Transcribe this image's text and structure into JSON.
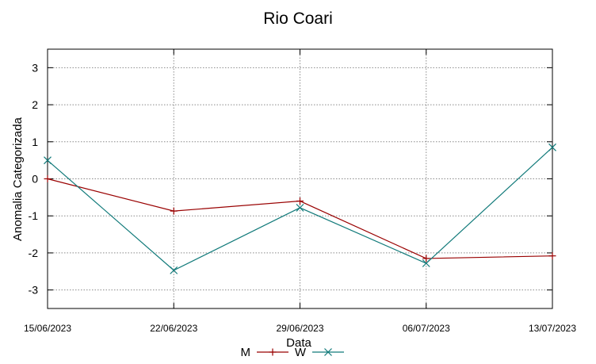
{
  "chart_data": {
    "type": "line",
    "title": "Rio Coari",
    "xlabel": "Data",
    "ylabel": "Anomalia Categorizada",
    "x": [
      "15/06/2023",
      "22/06/2023",
      "29/06/2023",
      "06/07/2023",
      "13/07/2023"
    ],
    "ylim": [
      -3.5,
      3.5
    ],
    "yticks": [
      -3,
      -2,
      -1,
      0,
      1,
      2,
      3
    ],
    "grid": true,
    "legend_position": "bottom-center",
    "series": [
      {
        "name": "M",
        "color": "#990000",
        "marker": "plus",
        "values": [
          0.0,
          -0.87,
          -0.6,
          -2.15,
          -2.08
        ]
      },
      {
        "name": "W",
        "color": "#117a7a",
        "marker": "cross",
        "values": [
          0.5,
          -2.47,
          -0.78,
          -2.28,
          0.85
        ]
      }
    ]
  }
}
